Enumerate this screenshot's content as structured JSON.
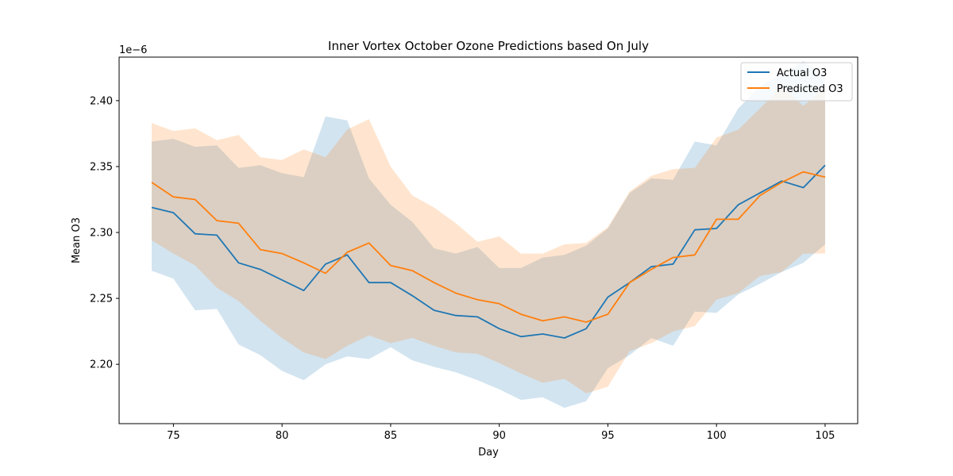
{
  "chart_data": {
    "type": "line",
    "title": "Inner Vortex October Ozone Predictions based On July",
    "xlabel": "Day",
    "ylabel": "Mean O3",
    "y_offset_text": "1e−6",
    "xlim": [
      72.5,
      106.5
    ],
    "ylim": [
      2.155,
      2.433
    ],
    "x_ticks": [
      75,
      80,
      85,
      90,
      95,
      100,
      105
    ],
    "x_tick_labels": [
      "75",
      "80",
      "85",
      "90",
      "95",
      "100",
      "105"
    ],
    "y_ticks": [
      2.2,
      2.25,
      2.3,
      2.35,
      2.4
    ],
    "y_tick_labels": [
      "2.20",
      "2.25",
      "2.30",
      "2.35",
      "2.40"
    ],
    "grid": false,
    "legend_position": "upper right",
    "x": [
      74,
      75,
      76,
      77,
      78,
      79,
      80,
      81,
      82,
      83,
      84,
      85,
      86,
      87,
      88,
      89,
      90,
      91,
      92,
      93,
      94,
      95,
      96,
      97,
      98,
      99,
      100,
      101,
      102,
      103,
      104,
      105
    ],
    "series": [
      {
        "name": "Actual O3",
        "color": "#1f77b4",
        "values": [
          2.319,
          2.315,
          2.299,
          2.298,
          2.277,
          2.272,
          2.264,
          2.256,
          2.276,
          2.283,
          2.262,
          2.262,
          2.252,
          2.241,
          2.237,
          2.236,
          2.227,
          2.221,
          2.223,
          2.22,
          2.227,
          2.251,
          2.262,
          2.274,
          2.276,
          2.302,
          2.303,
          2.321,
          2.33,
          2.339,
          2.334,
          2.351
        ],
        "band_upper": [
          2.369,
          2.371,
          2.365,
          2.366,
          2.349,
          2.351,
          2.345,
          2.342,
          2.388,
          2.385,
          2.341,
          2.321,
          2.308,
          2.288,
          2.284,
          2.289,
          2.273,
          2.273,
          2.281,
          2.283,
          2.29,
          2.303,
          2.33,
          2.341,
          2.34,
          2.369,
          2.366,
          2.394,
          2.411,
          2.42,
          2.43,
          2.418
        ],
        "band_lower": [
          2.271,
          2.265,
          2.241,
          2.242,
          2.215,
          2.207,
          2.195,
          2.188,
          2.2,
          2.206,
          2.204,
          2.213,
          2.203,
          2.198,
          2.194,
          2.188,
          2.181,
          2.173,
          2.175,
          2.167,
          2.172,
          2.197,
          2.207,
          2.22,
          2.214,
          2.24,
          2.239,
          2.253,
          2.261,
          2.27,
          2.277,
          2.291
        ]
      },
      {
        "name": "Predicted O3",
        "color": "#ff7f0e",
        "values": [
          2.338,
          2.327,
          2.325,
          2.309,
          2.307,
          2.287,
          2.284,
          2.277,
          2.269,
          2.285,
          2.292,
          2.275,
          2.271,
          2.262,
          2.254,
          2.249,
          2.246,
          2.238,
          2.233,
          2.236,
          2.232,
          2.238,
          2.262,
          2.272,
          2.281,
          2.283,
          2.31,
          2.31,
          2.328,
          2.338,
          2.346,
          2.342
        ],
        "band_upper": [
          2.383,
          2.377,
          2.379,
          2.37,
          2.374,
          2.357,
          2.355,
          2.363,
          2.357,
          2.378,
          2.386,
          2.35,
          2.328,
          2.319,
          2.307,
          2.293,
          2.297,
          2.284,
          2.284,
          2.291,
          2.292,
          2.304,
          2.331,
          2.343,
          2.348,
          2.349,
          2.372,
          2.378,
          2.394,
          2.411,
          2.396,
          2.41
        ],
        "band_lower": [
          2.294,
          2.284,
          2.275,
          2.258,
          2.248,
          2.233,
          2.22,
          2.209,
          2.204,
          2.214,
          2.222,
          2.216,
          2.22,
          2.214,
          2.209,
          2.208,
          2.201,
          2.193,
          2.186,
          2.189,
          2.178,
          2.183,
          2.21,
          2.216,
          2.225,
          2.229,
          2.249,
          2.254,
          2.267,
          2.27,
          2.284,
          2.284
        ]
      }
    ]
  }
}
